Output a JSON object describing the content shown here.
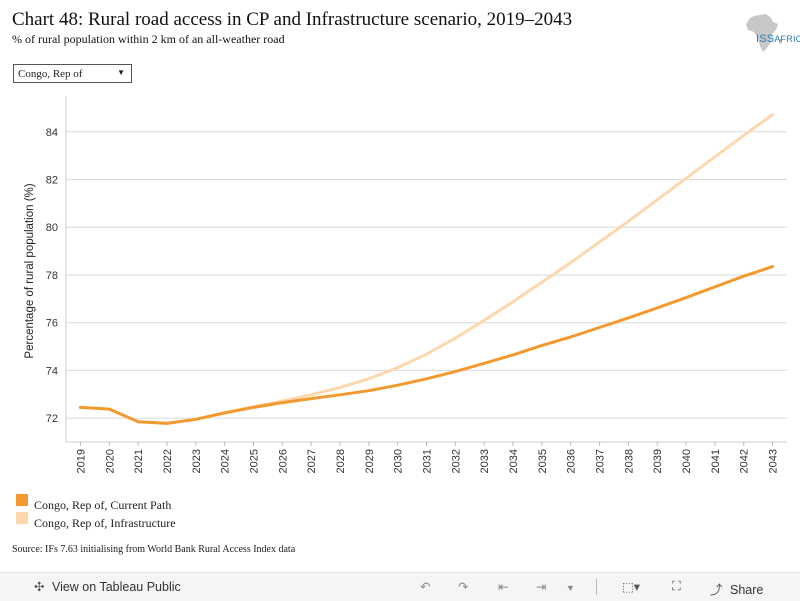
{
  "header": {
    "title": "Chart 48: Rural road access in CP and Infrastructure scenario, 2019–2043",
    "subtitle": "% of rural population within 2 km of an all-weather road",
    "logo_text": "ISS",
    "logo_text_small": "AFRICA"
  },
  "filter": {
    "selected": "Congo, Rep of",
    "arrow_icon": "dropdown-arrow-icon"
  },
  "source": "Source: IFs 7.63 initialising from World Bank Rural Access Index data",
  "toolbar": {
    "view_label": "View on Tableau Public",
    "share_label": "Share",
    "icons": [
      "tableau-logo-icon",
      "undo-icon",
      "redo-icon",
      "revert-icon",
      "refresh-icon",
      "download-icon",
      "fullscreen-icon",
      "share-icon"
    ]
  },
  "chart_data": {
    "type": "line",
    "title": "Chart 48: Rural road access in CP and Infrastructure scenario, 2019–2043",
    "ylabel": "Percentage of rural population (%)",
    "xlabel": "",
    "x": [
      "2019",
      "2020",
      "2021",
      "2022",
      "2023",
      "2024",
      "2025",
      "2026",
      "2027",
      "2028",
      "2029",
      "2030",
      "2031",
      "2032",
      "2033",
      "2034",
      "2035",
      "2036",
      "2037",
      "2038",
      "2039",
      "2040",
      "2041",
      "2042",
      "2043"
    ],
    "ylim": [
      71,
      85.5
    ],
    "yticks": [
      72,
      74,
      76,
      78,
      80,
      82,
      84
    ],
    "grid": true,
    "legend_position": "bottom-left",
    "series": [
      {
        "name": "Congo, Rep of, Current Path",
        "color": "#f39a2e",
        "values": [
          72.45,
          72.38,
          71.85,
          71.78,
          71.95,
          72.22,
          72.45,
          72.65,
          72.82,
          72.98,
          73.15,
          73.38,
          73.65,
          73.95,
          74.3,
          74.65,
          75.05,
          75.4,
          75.8,
          76.2,
          76.62,
          77.05,
          77.5,
          77.95,
          78.35
        ]
      },
      {
        "name": "Congo, Rep of, Infrastructure",
        "color": "#fdd7ae",
        "values": [
          72.45,
          72.38,
          71.85,
          71.78,
          71.95,
          72.22,
          72.48,
          72.72,
          72.98,
          73.28,
          73.65,
          74.12,
          74.68,
          75.35,
          76.1,
          76.88,
          77.7,
          78.52,
          79.38,
          80.25,
          81.15,
          82.05,
          82.95,
          83.85,
          84.72
        ]
      }
    ]
  }
}
